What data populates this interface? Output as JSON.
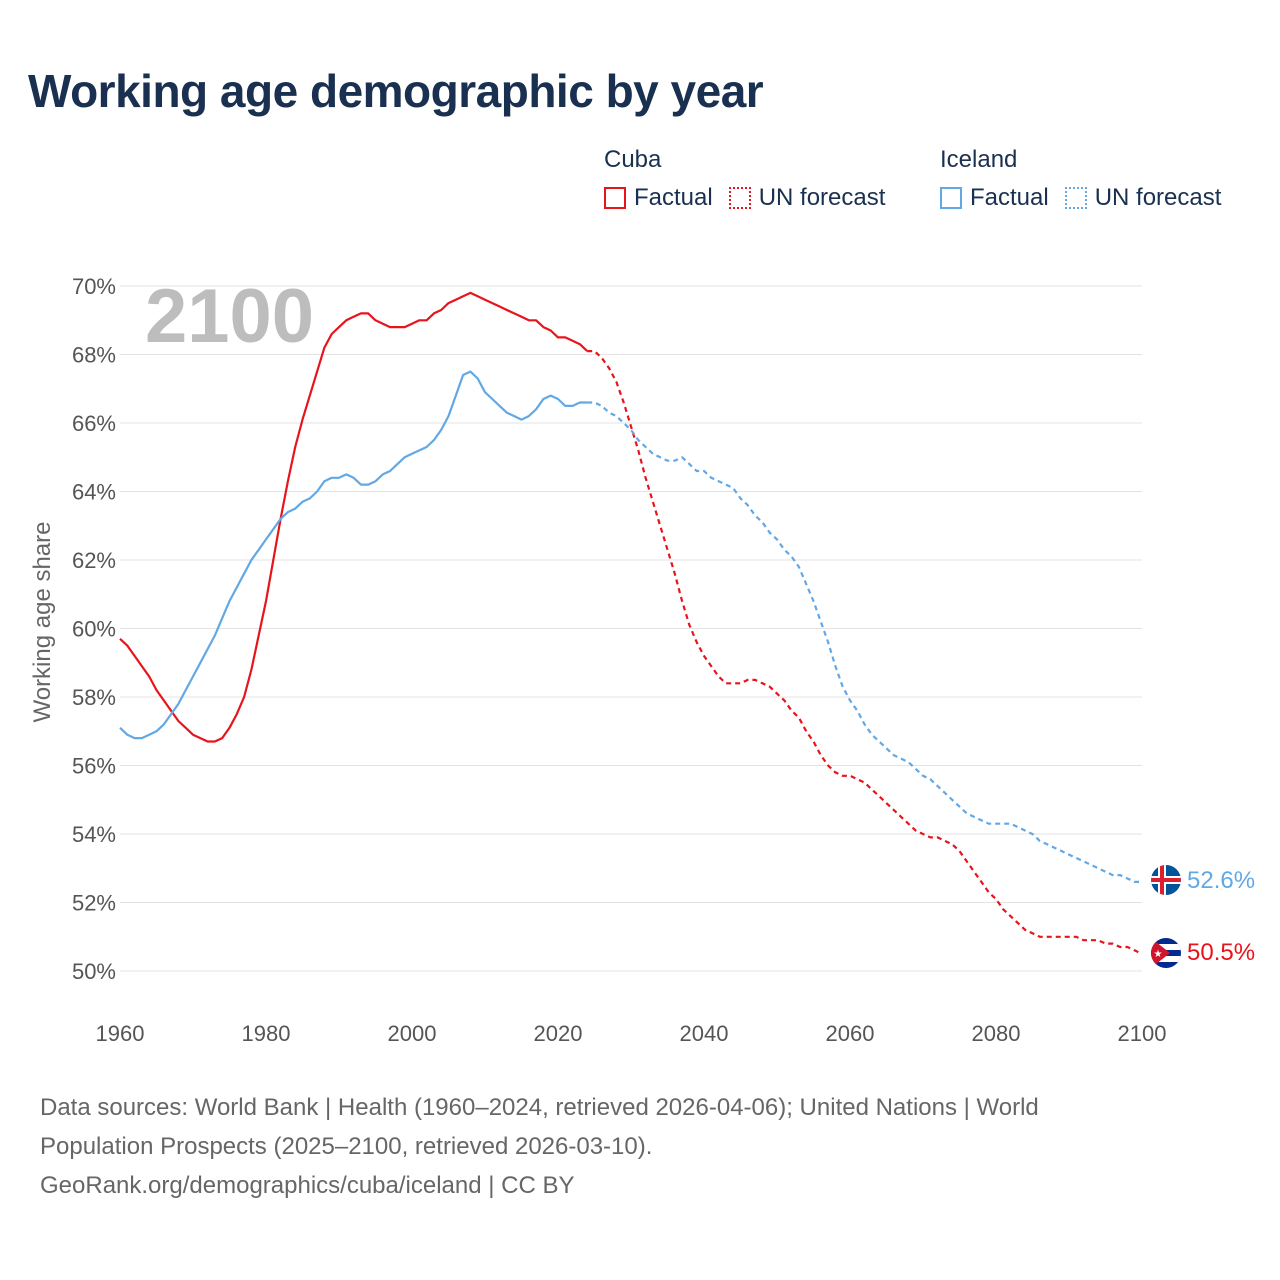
{
  "title": "Working age demographic by year",
  "legend": {
    "groups": [
      {
        "name": "Cuba",
        "factual_label": "Factual",
        "forecast_label": "UN forecast",
        "color": "#e8141c"
      },
      {
        "name": "Iceland",
        "factual_label": "Factual",
        "forecast_label": "UN forecast",
        "color": "#62a8e5"
      }
    ]
  },
  "year_watermark": "2100",
  "sources": {
    "line1": "Data sources: World Bank | Health (1960–2024, retrieved 2026-04-06); United Nations | World",
    "line2": "Population Prospects (2025–2100, retrieved 2026-03-10).",
    "line3": "GeoRank.org/demographics/cuba/iceland | CC BY"
  },
  "chart_data": {
    "type": "line",
    "title": "Working age demographic by year",
    "xlabel": "",
    "ylabel": "Working age share",
    "xlim": [
      1960,
      2100
    ],
    "ylim": [
      50,
      70
    ],
    "x_ticks": [
      1960,
      1980,
      2000,
      2020,
      2040,
      2060,
      2080,
      2100
    ],
    "y_ticks": [
      50,
      52,
      54,
      56,
      58,
      60,
      62,
      64,
      66,
      68,
      70
    ],
    "y_tick_suffix": "%",
    "grid": true,
    "factual_end_year": 2024,
    "series": [
      {
        "name": "Cuba",
        "color": "#e8141c",
        "end_label": "50.5%",
        "flag": "cuba-flag",
        "points": [
          [
            1960,
            59.7
          ],
          [
            1961,
            59.5
          ],
          [
            1962,
            59.2
          ],
          [
            1963,
            58.9
          ],
          [
            1964,
            58.6
          ],
          [
            1965,
            58.2
          ],
          [
            1966,
            57.9
          ],
          [
            1967,
            57.6
          ],
          [
            1968,
            57.3
          ],
          [
            1969,
            57.1
          ],
          [
            1970,
            56.9
          ],
          [
            1971,
            56.8
          ],
          [
            1972,
            56.7
          ],
          [
            1973,
            56.7
          ],
          [
            1974,
            56.8
          ],
          [
            1975,
            57.1
          ],
          [
            1976,
            57.5
          ],
          [
            1977,
            58.0
          ],
          [
            1978,
            58.8
          ],
          [
            1979,
            59.8
          ],
          [
            1980,
            60.8
          ],
          [
            1981,
            62.0
          ],
          [
            1982,
            63.2
          ],
          [
            1983,
            64.3
          ],
          [
            1984,
            65.3
          ],
          [
            1985,
            66.1
          ],
          [
            1986,
            66.8
          ],
          [
            1987,
            67.5
          ],
          [
            1988,
            68.2
          ],
          [
            1989,
            68.6
          ],
          [
            1990,
            68.8
          ],
          [
            1991,
            69.0
          ],
          [
            1992,
            69.1
          ],
          [
            1993,
            69.2
          ],
          [
            1994,
            69.2
          ],
          [
            1995,
            69.0
          ],
          [
            1996,
            68.9
          ],
          [
            1997,
            68.8
          ],
          [
            1998,
            68.8
          ],
          [
            1999,
            68.8
          ],
          [
            2000,
            68.9
          ],
          [
            2001,
            69.0
          ],
          [
            2002,
            69.0
          ],
          [
            2003,
            69.2
          ],
          [
            2004,
            69.3
          ],
          [
            2005,
            69.5
          ],
          [
            2006,
            69.6
          ],
          [
            2007,
            69.7
          ],
          [
            2008,
            69.8
          ],
          [
            2009,
            69.7
          ],
          [
            2010,
            69.6
          ],
          [
            2011,
            69.5
          ],
          [
            2012,
            69.4
          ],
          [
            2013,
            69.3
          ],
          [
            2014,
            69.2
          ],
          [
            2015,
            69.1
          ],
          [
            2016,
            69.0
          ],
          [
            2017,
            69.0
          ],
          [
            2018,
            68.8
          ],
          [
            2019,
            68.7
          ],
          [
            2020,
            68.5
          ],
          [
            2021,
            68.5
          ],
          [
            2022,
            68.4
          ],
          [
            2023,
            68.3
          ],
          [
            2024,
            68.1
          ],
          [
            2025,
            68.1
          ],
          [
            2026,
            67.9
          ],
          [
            2027,
            67.6
          ],
          [
            2028,
            67.2
          ],
          [
            2029,
            66.6
          ],
          [
            2030,
            65.9
          ],
          [
            2031,
            65.2
          ],
          [
            2032,
            64.4
          ],
          [
            2033,
            63.7
          ],
          [
            2034,
            63.0
          ],
          [
            2035,
            62.3
          ],
          [
            2036,
            61.6
          ],
          [
            2037,
            60.8
          ],
          [
            2038,
            60.1
          ],
          [
            2039,
            59.6
          ],
          [
            2040,
            59.2
          ],
          [
            2041,
            58.9
          ],
          [
            2042,
            58.6
          ],
          [
            2043,
            58.4
          ],
          [
            2044,
            58.4
          ],
          [
            2045,
            58.4
          ],
          [
            2046,
            58.5
          ],
          [
            2047,
            58.5
          ],
          [
            2048,
            58.4
          ],
          [
            2049,
            58.3
          ],
          [
            2050,
            58.1
          ],
          [
            2051,
            57.9
          ],
          [
            2052,
            57.6
          ],
          [
            2053,
            57.4
          ],
          [
            2054,
            57.0
          ],
          [
            2055,
            56.7
          ],
          [
            2056,
            56.3
          ],
          [
            2057,
            56.0
          ],
          [
            2058,
            55.8
          ],
          [
            2059,
            55.7
          ],
          [
            2060,
            55.7
          ],
          [
            2061,
            55.6
          ],
          [
            2062,
            55.5
          ],
          [
            2063,
            55.3
          ],
          [
            2064,
            55.1
          ],
          [
            2065,
            54.9
          ],
          [
            2066,
            54.7
          ],
          [
            2067,
            54.5
          ],
          [
            2068,
            54.3
          ],
          [
            2069,
            54.1
          ],
          [
            2070,
            54.0
          ],
          [
            2071,
            53.9
          ],
          [
            2072,
            53.9
          ],
          [
            2073,
            53.8
          ],
          [
            2074,
            53.7
          ],
          [
            2075,
            53.5
          ],
          [
            2076,
            53.2
          ],
          [
            2077,
            52.9
          ],
          [
            2078,
            52.6
          ],
          [
            2079,
            52.3
          ],
          [
            2080,
            52.1
          ],
          [
            2081,
            51.8
          ],
          [
            2082,
            51.6
          ],
          [
            2083,
            51.4
          ],
          [
            2084,
            51.2
          ],
          [
            2085,
            51.1
          ],
          [
            2086,
            51.0
          ],
          [
            2087,
            51.0
          ],
          [
            2088,
            51.0
          ],
          [
            2089,
            51.0
          ],
          [
            2090,
            51.0
          ],
          [
            2091,
            51.0
          ],
          [
            2092,
            50.9
          ],
          [
            2093,
            50.9
          ],
          [
            2094,
            50.9
          ],
          [
            2095,
            50.8
          ],
          [
            2096,
            50.8
          ],
          [
            2097,
            50.7
          ],
          [
            2098,
            50.7
          ],
          [
            2099,
            50.6
          ],
          [
            2100,
            50.5
          ]
        ]
      },
      {
        "name": "Iceland",
        "color": "#62a8e5",
        "end_label": "52.6%",
        "flag": "iceland-flag",
        "points": [
          [
            1960,
            57.1
          ],
          [
            1961,
            56.9
          ],
          [
            1962,
            56.8
          ],
          [
            1963,
            56.8
          ],
          [
            1964,
            56.9
          ],
          [
            1965,
            57.0
          ],
          [
            1966,
            57.2
          ],
          [
            1967,
            57.5
          ],
          [
            1968,
            57.8
          ],
          [
            1969,
            58.2
          ],
          [
            1970,
            58.6
          ],
          [
            1971,
            59.0
          ],
          [
            1972,
            59.4
          ],
          [
            1973,
            59.8
          ],
          [
            1974,
            60.3
          ],
          [
            1975,
            60.8
          ],
          [
            1976,
            61.2
          ],
          [
            1977,
            61.6
          ],
          [
            1978,
            62.0
          ],
          [
            1979,
            62.3
          ],
          [
            1980,
            62.6
          ],
          [
            1981,
            62.9
          ],
          [
            1982,
            63.2
          ],
          [
            1983,
            63.4
          ],
          [
            1984,
            63.5
          ],
          [
            1985,
            63.7
          ],
          [
            1986,
            63.8
          ],
          [
            1987,
            64.0
          ],
          [
            1988,
            64.3
          ],
          [
            1989,
            64.4
          ],
          [
            1990,
            64.4
          ],
          [
            1991,
            64.5
          ],
          [
            1992,
            64.4
          ],
          [
            1993,
            64.2
          ],
          [
            1994,
            64.2
          ],
          [
            1995,
            64.3
          ],
          [
            1996,
            64.5
          ],
          [
            1997,
            64.6
          ],
          [
            1998,
            64.8
          ],
          [
            1999,
            65.0
          ],
          [
            2000,
            65.1
          ],
          [
            2001,
            65.2
          ],
          [
            2002,
            65.3
          ],
          [
            2003,
            65.5
          ],
          [
            2004,
            65.8
          ],
          [
            2005,
            66.2
          ],
          [
            2006,
            66.8
          ],
          [
            2007,
            67.4
          ],
          [
            2008,
            67.5
          ],
          [
            2009,
            67.3
          ],
          [
            2010,
            66.9
          ],
          [
            2011,
            66.7
          ],
          [
            2012,
            66.5
          ],
          [
            2013,
            66.3
          ],
          [
            2014,
            66.2
          ],
          [
            2015,
            66.1
          ],
          [
            2016,
            66.2
          ],
          [
            2017,
            66.4
          ],
          [
            2018,
            66.7
          ],
          [
            2019,
            66.8
          ],
          [
            2020,
            66.7
          ],
          [
            2021,
            66.5
          ],
          [
            2022,
            66.5
          ],
          [
            2023,
            66.6
          ],
          [
            2024,
            66.6
          ],
          [
            2025,
            66.6
          ],
          [
            2026,
            66.5
          ],
          [
            2027,
            66.3
          ],
          [
            2028,
            66.2
          ],
          [
            2029,
            66.0
          ],
          [
            2030,
            65.8
          ],
          [
            2031,
            65.5
          ],
          [
            2032,
            65.3
          ],
          [
            2033,
            65.1
          ],
          [
            2034,
            65.0
          ],
          [
            2035,
            64.9
          ],
          [
            2036,
            64.9
          ],
          [
            2037,
            65.0
          ],
          [
            2038,
            64.8
          ],
          [
            2039,
            64.6
          ],
          [
            2040,
            64.6
          ],
          [
            2041,
            64.4
          ],
          [
            2042,
            64.3
          ],
          [
            2043,
            64.2
          ],
          [
            2044,
            64.1
          ],
          [
            2045,
            63.8
          ],
          [
            2046,
            63.6
          ],
          [
            2047,
            63.3
          ],
          [
            2048,
            63.1
          ],
          [
            2049,
            62.8
          ],
          [
            2050,
            62.6
          ],
          [
            2051,
            62.3
          ],
          [
            2052,
            62.1
          ],
          [
            2053,
            61.8
          ],
          [
            2054,
            61.3
          ],
          [
            2055,
            60.8
          ],
          [
            2056,
            60.2
          ],
          [
            2057,
            59.6
          ],
          [
            2058,
            58.9
          ],
          [
            2059,
            58.3
          ],
          [
            2060,
            57.9
          ],
          [
            2061,
            57.6
          ],
          [
            2062,
            57.2
          ],
          [
            2063,
            56.9
          ],
          [
            2064,
            56.7
          ],
          [
            2065,
            56.5
          ],
          [
            2066,
            56.3
          ],
          [
            2067,
            56.2
          ],
          [
            2068,
            56.1
          ],
          [
            2069,
            55.9
          ],
          [
            2070,
            55.7
          ],
          [
            2071,
            55.6
          ],
          [
            2072,
            55.4
          ],
          [
            2073,
            55.2
          ],
          [
            2074,
            55.0
          ],
          [
            2075,
            54.8
          ],
          [
            2076,
            54.6
          ],
          [
            2077,
            54.5
          ],
          [
            2078,
            54.4
          ],
          [
            2079,
            54.3
          ],
          [
            2080,
            54.3
          ],
          [
            2081,
            54.3
          ],
          [
            2082,
            54.3
          ],
          [
            2083,
            54.2
          ],
          [
            2084,
            54.1
          ],
          [
            2085,
            54.0
          ],
          [
            2086,
            53.8
          ],
          [
            2087,
            53.7
          ],
          [
            2088,
            53.6
          ],
          [
            2089,
            53.5
          ],
          [
            2090,
            53.4
          ],
          [
            2091,
            53.3
          ],
          [
            2092,
            53.2
          ],
          [
            2093,
            53.1
          ],
          [
            2094,
            53.0
          ],
          [
            2095,
            52.9
          ],
          [
            2096,
            52.8
          ],
          [
            2097,
            52.8
          ],
          [
            2098,
            52.7
          ],
          [
            2099,
            52.6
          ],
          [
            2100,
            52.6
          ]
        ]
      }
    ]
  }
}
